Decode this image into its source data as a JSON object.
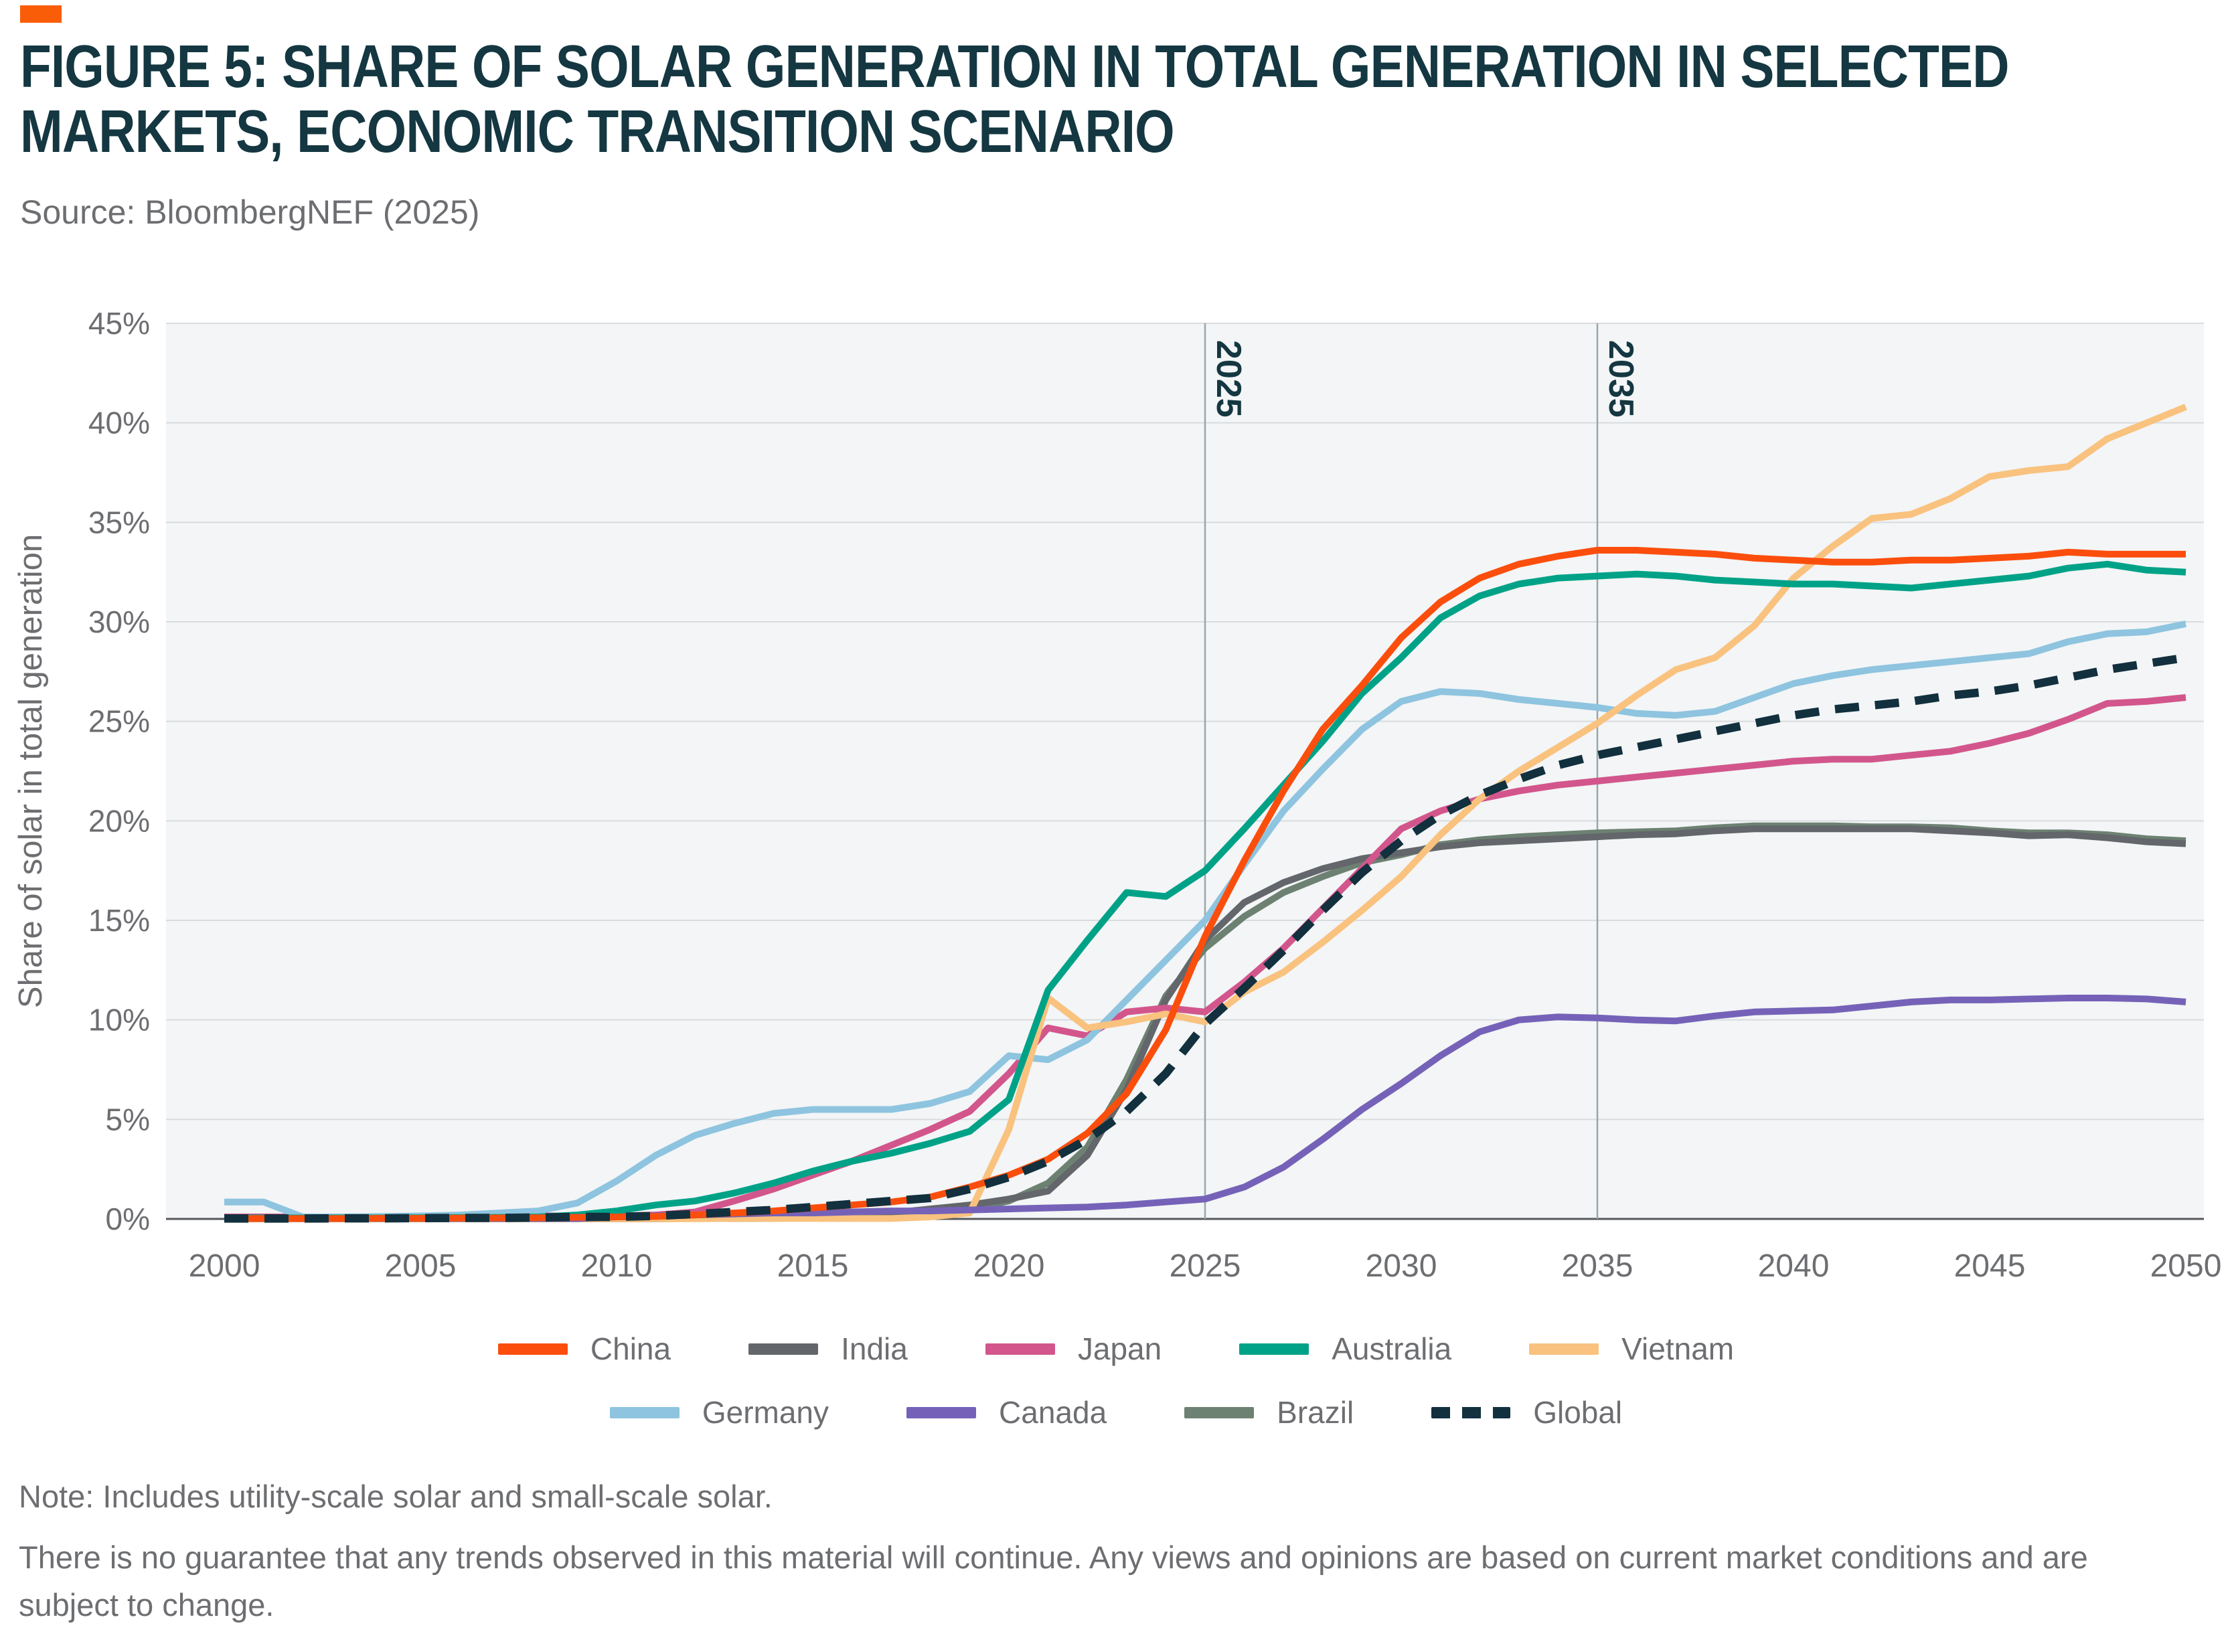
{
  "header": {
    "accent_color": "#FA5D07",
    "title_line1": "FIGURE 5: SHARE OF SOLAR GENERATION IN TOTAL GENERATION IN SELECTED",
    "title_line2": "MARKETS, ECONOMIC TRANSITION SCENARIO",
    "source": "Source: BloombergNEF (2025)"
  },
  "notes": {
    "line1": "Note: Includes utility-scale solar and small-scale solar.",
    "line2": "There is no guarantee that any trends observed in this material will continue. Any views and opinions are based on current market conditions and are subject to change."
  },
  "chart_data": {
    "type": "line",
    "title": "Share of solar generation in total generation in selected markets, Economic Transition Scenario",
    "xlabel": "",
    "ylabel": "Share of solar in total generation",
    "xlim": [
      2000,
      2050
    ],
    "ylim": [
      0,
      45
    ],
    "xticks": [
      2000,
      2005,
      2010,
      2015,
      2020,
      2025,
      2030,
      2035,
      2040,
      2045,
      2050
    ],
    "yticks_percent": [
      0,
      5,
      10,
      15,
      20,
      25,
      30,
      35,
      40,
      45
    ],
    "grid": "horizontal",
    "legend_position": "bottom",
    "markers": [
      {
        "label": "2025",
        "year": 2025
      },
      {
        "label": "2035",
        "year": 2035
      }
    ],
    "legend_rows": [
      [
        "China",
        "India",
        "Japan",
        "Australia",
        "Vietnam"
      ],
      [
        "Germany",
        "Canada",
        "Brazil",
        "Global"
      ]
    ],
    "style": {
      "plot_bg": "#f3f5f6",
      "grid_color": "#d8dcde",
      "zero_axis_color": "#55585b",
      "marker_line_color": "#9aa5ab",
      "marker_label_color": "#143741",
      "tick_label_color": "#6d6e71",
      "axis_title_color": "#6d6e71"
    },
    "x": [
      2000,
      2001,
      2002,
      2003,
      2004,
      2005,
      2006,
      2007,
      2008,
      2009,
      2010,
      2011,
      2012,
      2013,
      2014,
      2015,
      2016,
      2017,
      2018,
      2019,
      2020,
      2021,
      2022,
      2023,
      2024,
      2025,
      2026,
      2027,
      2028,
      2029,
      2030,
      2031,
      2032,
      2033,
      2034,
      2035,
      2036,
      2037,
      2038,
      2039,
      2040,
      2041,
      2042,
      2043,
      2044,
      2045,
      2046,
      2047,
      2048,
      2049,
      2050
    ],
    "series": [
      {
        "name": "China",
        "color": "#fb4e0d",
        "dashed": false,
        "values": [
          0.02,
          0.02,
          0.02,
          0.02,
          0.03,
          0.03,
          0.04,
          0.05,
          0.06,
          0.08,
          0.1,
          0.12,
          0.2,
          0.3,
          0.4,
          0.55,
          0.7,
          0.85,
          1.1,
          1.6,
          2.2,
          3.0,
          4.3,
          6.3,
          9.5,
          14.2,
          18.0,
          21.5,
          24.6,
          26.8,
          29.2,
          31.0,
          32.2,
          32.9,
          33.3,
          33.6,
          33.6,
          33.5,
          33.4,
          33.2,
          33.1,
          33.0,
          33.0,
          33.1,
          33.1,
          33.2,
          33.3,
          33.5,
          33.4,
          33.4,
          33.4
        ]
      },
      {
        "name": "India",
        "color": "#63666a",
        "dashed": false,
        "values": [
          0.01,
          0.01,
          0.01,
          0.01,
          0.01,
          0.01,
          0.01,
          0.01,
          0.01,
          0.01,
          0.01,
          0.01,
          0.02,
          0.02,
          0.03,
          0.05,
          0.15,
          0.3,
          0.5,
          0.7,
          1.0,
          1.4,
          3.2,
          6.5,
          11.0,
          14.0,
          15.9,
          16.9,
          17.6,
          18.1,
          18.4,
          18.7,
          18.9,
          19.0,
          19.1,
          19.2,
          19.3,
          19.35,
          19.5,
          19.6,
          19.6,
          19.6,
          19.6,
          19.6,
          19.5,
          19.4,
          19.25,
          19.3,
          19.15,
          18.95,
          18.85
        ]
      },
      {
        "name": "Japan",
        "color": "#d2568c",
        "dashed": false,
        "values": [
          0.1,
          0.1,
          0.1,
          0.1,
          0.1,
          0.12,
          0.13,
          0.15,
          0.15,
          0.15,
          0.15,
          0.2,
          0.35,
          0.9,
          1.5,
          2.2,
          2.9,
          3.7,
          4.5,
          5.4,
          7.3,
          9.6,
          9.2,
          10.4,
          10.6,
          10.4,
          11.9,
          13.6,
          15.6,
          17.6,
          19.6,
          20.5,
          21.1,
          21.5,
          21.8,
          22.0,
          22.2,
          22.4,
          22.6,
          22.8,
          23.0,
          23.1,
          23.1,
          23.3,
          23.5,
          23.9,
          24.4,
          25.1,
          25.9,
          26.0,
          26.2
        ]
      },
      {
        "name": "Australia",
        "color": "#00a287",
        "dashed": false,
        "values": [
          0.05,
          0.05,
          0.05,
          0.05,
          0.05,
          0.06,
          0.07,
          0.08,
          0.1,
          0.2,
          0.4,
          0.7,
          0.9,
          1.3,
          1.8,
          2.4,
          2.9,
          3.3,
          3.8,
          4.4,
          6.0,
          11.5,
          14.0,
          16.4,
          16.2,
          17.5,
          19.6,
          21.8,
          24.0,
          26.4,
          28.2,
          30.2,
          31.3,
          31.9,
          32.2,
          32.3,
          32.4,
          32.3,
          32.1,
          32.0,
          31.9,
          31.9,
          31.8,
          31.7,
          31.9,
          32.1,
          32.3,
          32.7,
          32.9,
          32.6,
          32.5
        ]
      },
      {
        "name": "Vietnam",
        "color": "#f9c27e",
        "dashed": false,
        "values": [
          0.01,
          0.01,
          0.01,
          0.01,
          0.01,
          0.01,
          0.01,
          0.01,
          0.01,
          0.01,
          0.01,
          0.01,
          0.01,
          0.02,
          0.02,
          0.02,
          0.02,
          0.02,
          0.1,
          0.3,
          4.5,
          11.1,
          9.6,
          9.9,
          10.3,
          9.9,
          11.4,
          12.4,
          13.9,
          15.5,
          17.2,
          19.3,
          21.1,
          22.5,
          23.7,
          24.9,
          26.3,
          27.6,
          28.2,
          29.8,
          32.2,
          33.8,
          35.2,
          35.4,
          36.2,
          37.3,
          37.6,
          37.8,
          39.2,
          40.0,
          40.8
        ]
      },
      {
        "name": "Germany",
        "color": "#8ec4df",
        "dashed": false,
        "values": [
          0.85,
          0.85,
          0.1,
          0.1,
          0.12,
          0.15,
          0.2,
          0.3,
          0.4,
          0.8,
          1.9,
          3.2,
          4.2,
          4.8,
          5.3,
          5.5,
          5.5,
          5.5,
          5.8,
          6.4,
          8.2,
          8.0,
          9.0,
          11.0,
          13.0,
          15.0,
          17.8,
          20.5,
          22.6,
          24.6,
          26.0,
          26.5,
          26.4,
          26.1,
          25.9,
          25.7,
          25.4,
          25.3,
          25.5,
          26.2,
          26.9,
          27.3,
          27.6,
          27.8,
          28.0,
          28.2,
          28.4,
          29.0,
          29.4,
          29.5,
          29.9
        ]
      },
      {
        "name": "Canada",
        "color": "#7562b8",
        "dashed": false,
        "values": [
          0.02,
          0.02,
          0.02,
          0.02,
          0.02,
          0.02,
          0.02,
          0.02,
          0.02,
          0.02,
          0.1,
          0.15,
          0.2,
          0.25,
          0.3,
          0.3,
          0.35,
          0.4,
          0.4,
          0.45,
          0.5,
          0.55,
          0.6,
          0.7,
          0.85,
          1.0,
          1.6,
          2.6,
          4.0,
          5.5,
          6.8,
          8.2,
          9.4,
          10.0,
          10.15,
          10.1,
          10.0,
          9.95,
          10.2,
          10.4,
          10.45,
          10.5,
          10.7,
          10.9,
          11.0,
          11.0,
          11.05,
          11.1,
          11.1,
          11.05,
          10.9
        ]
      },
      {
        "name": "Brazil",
        "color": "#6d8172",
        "dashed": false,
        "values": [
          0.01,
          0.01,
          0.01,
          0.01,
          0.01,
          0.01,
          0.01,
          0.01,
          0.01,
          0.01,
          0.01,
          0.01,
          0.02,
          0.02,
          0.03,
          0.04,
          0.05,
          0.1,
          0.2,
          0.5,
          0.9,
          1.8,
          3.6,
          7.0,
          11.2,
          13.6,
          15.2,
          16.4,
          17.2,
          17.9,
          18.3,
          18.8,
          19.05,
          19.2,
          19.3,
          19.4,
          19.45,
          19.5,
          19.65,
          19.75,
          19.75,
          19.75,
          19.7,
          19.7,
          19.65,
          19.5,
          19.4,
          19.4,
          19.3,
          19.1,
          19.0
        ]
      },
      {
        "name": "Global",
        "color": "#12303e",
        "dashed": true,
        "values": [
          0.02,
          0.02,
          0.02,
          0.03,
          0.03,
          0.04,
          0.05,
          0.05,
          0.07,
          0.1,
          0.1,
          0.15,
          0.25,
          0.35,
          0.45,
          0.6,
          0.75,
          0.9,
          1.05,
          1.5,
          2.1,
          2.9,
          4.0,
          5.4,
          7.3,
          9.8,
          11.6,
          13.5,
          15.5,
          17.4,
          19.0,
          20.3,
          21.3,
          22.1,
          22.8,
          23.3,
          23.7,
          24.1,
          24.5,
          24.9,
          25.3,
          25.6,
          25.8,
          26.0,
          26.3,
          26.5,
          26.8,
          27.2,
          27.6,
          27.9,
          28.2
        ]
      }
    ]
  }
}
